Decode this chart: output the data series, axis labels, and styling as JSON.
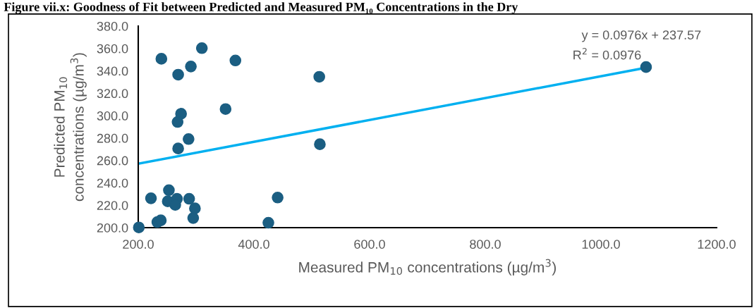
{
  "chart_data": {
    "type": "scatter",
    "title": "Figure vii.x: Goodness of Fit between Predicted and Measured PM₁₀ Concentrations in the Dry",
    "xlabel": "Measured PM$_{10}$ concentrations (µg/m$^{3}$)",
    "ylabel": "Predicted PM$_{10}$\nconcentrations (µg/m$^{3}$)",
    "series": [
      {
        "color": "#1b5e82",
        "marker": "circle",
        "x": [
          240,
          310,
          368,
          291,
          269,
          513,
          351,
          274,
          268,
          287,
          269,
          514,
          253,
          222,
          251,
          267,
          264,
          288,
          441,
          298,
          295,
          233,
          239,
          425,
          201,
          1078
        ],
        "values": [
          350.8,
          360.3,
          349.3,
          343.9,
          336.6,
          334.7,
          305.9,
          301.7,
          294.4,
          279.1,
          270.7,
          274.5,
          233.5,
          226.2,
          223.5,
          225.8,
          220.3,
          225.8,
          226.9,
          217.2,
          208.6,
          205,
          206.5,
          204.4,
          200.2,
          343.4
        ]
      },
      {
        "type": "line",
        "color": "#00b0f0",
        "line_style": "solid",
        "x": [
          200,
          1078
        ],
        "values": [
          257.1,
          342.8
        ]
      }
    ],
    "annotations": [
      "y = 0.0976x + 237.57",
      "R$^{2}$ = 0.0976"
    ],
    "xlim": [
      200,
      1200
    ],
    "xticks": [
      {
        "value": 200,
        "label": "200.0"
      },
      {
        "value": 400,
        "label": "400.0"
      },
      {
        "value": 600,
        "label": "600.0"
      },
      {
        "value": 800,
        "label": "800.0"
      },
      {
        "value": 1000,
        "label": "1000.0"
      },
      {
        "value": 1200,
        "label": "1200.0"
      }
    ],
    "ylim": [
      200,
      380
    ],
    "yticks": [
      {
        "value": 200,
        "label": "200.0"
      },
      {
        "value": 220,
        "label": "220.0"
      },
      {
        "value": 240,
        "label": "240.0"
      },
      {
        "value": 260,
        "label": "260.0"
      },
      {
        "value": 280,
        "label": "280.0"
      },
      {
        "value": 300,
        "label": "300.0"
      },
      {
        "value": 320,
        "label": "320.0"
      },
      {
        "value": 340,
        "label": "340.0"
      },
      {
        "value": 360,
        "label": "360.0"
      },
      {
        "value": 380,
        "label": "380.0"
      }
    ],
    "grid": false,
    "legend": false
  }
}
